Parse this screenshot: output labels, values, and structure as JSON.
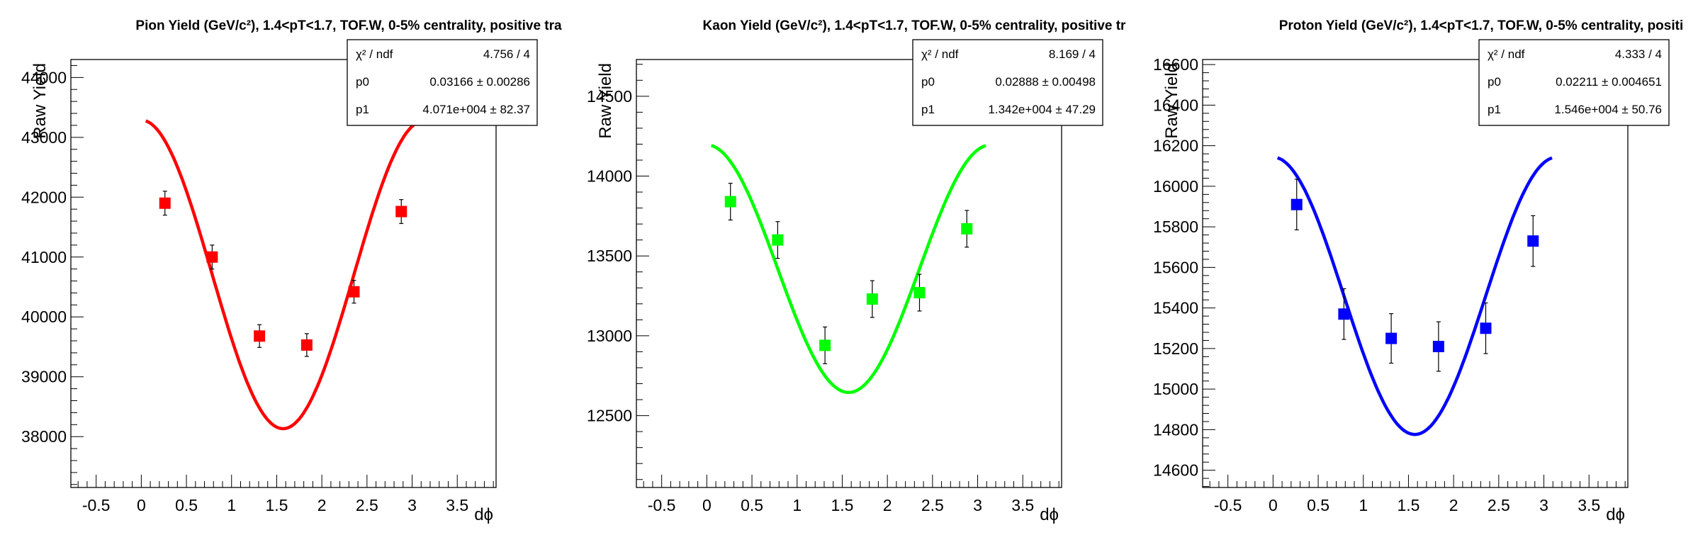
{
  "chart_data": [
    {
      "type": "scatter",
      "title": "Pion Yield (GeV/c²), 1.4<pT<1.7, TOF.W, 0-5% centrality, positive tra",
      "xlabel": "dϕ",
      "ylabel": "Raw Yield",
      "xlim": [
        -0.78,
        3.93
      ],
      "ylim": [
        37150,
        44300
      ],
      "xticks": [
        "-0.5",
        "0",
        "0.5",
        "1",
        "1.5",
        "2",
        "2.5",
        "3",
        "3.5"
      ],
      "xtick_values": [
        -0.5,
        0,
        0.5,
        1,
        1.5,
        2,
        2.5,
        3,
        3.5
      ],
      "yticks": [
        "38000",
        "39000",
        "40000",
        "41000",
        "42000",
        "43000",
        "44000"
      ],
      "ytick_values": [
        38000,
        39000,
        40000,
        41000,
        42000,
        43000,
        44000
      ],
      "color": "#ff0000",
      "points": [
        {
          "x": 0.262,
          "y": 41900,
          "err": 200
        },
        {
          "x": 0.785,
          "y": 41000,
          "err": 200
        },
        {
          "x": 1.309,
          "y": 39680,
          "err": 190
        },
        {
          "x": 1.833,
          "y": 39530,
          "err": 190
        },
        {
          "x": 2.356,
          "y": 40420,
          "err": 190
        },
        {
          "x": 2.88,
          "y": 41760,
          "err": 200
        }
      ],
      "fit": {
        "p0": 0.03166,
        "p1": 40710,
        "xmin": 0.05,
        "xmax": 3.09
      },
      "stats": [
        {
          "label": "χ² / ndf",
          "value": "4.756 / 4"
        },
        {
          "label": "p0",
          "value": "0.03166 ± 0.00286"
        },
        {
          "label": "p1",
          "value": "4.071e+004 ± 82.37"
        }
      ]
    },
    {
      "type": "scatter",
      "title": "Kaon Yield (GeV/c²), 1.4<pT<1.7, TOF.W, 0-5% centrality, positive tr",
      "xlabel": "dϕ",
      "ylabel": "Raw Yield",
      "xlim": [
        -0.78,
        3.93
      ],
      "ylim": [
        12050,
        14730
      ],
      "xticks": [
        "-0.5",
        "0",
        "0.5",
        "1",
        "1.5",
        "2",
        "2.5",
        "3",
        "3.5"
      ],
      "xtick_values": [
        -0.5,
        0,
        0.5,
        1,
        1.5,
        2,
        2.5,
        3,
        3.5
      ],
      "yticks": [
        "12500",
        "13000",
        "13500",
        "14000",
        "14500"
      ],
      "ytick_values": [
        12500,
        13000,
        13500,
        14000,
        14500
      ],
      "color": "#00ff00",
      "points": [
        {
          "x": 0.262,
          "y": 13840,
          "err": 115
        },
        {
          "x": 0.785,
          "y": 13600,
          "err": 115
        },
        {
          "x": 1.309,
          "y": 12940,
          "err": 115
        },
        {
          "x": 1.833,
          "y": 13230,
          "err": 115
        },
        {
          "x": 2.356,
          "y": 13270,
          "err": 115
        },
        {
          "x": 2.88,
          "y": 13670,
          "err": 115
        }
      ],
      "fit": {
        "p0": 0.02888,
        "p1": 13420,
        "xmin": 0.05,
        "xmax": 3.09
      },
      "stats": [
        {
          "label": "χ² / ndf",
          "value": "8.169 / 4"
        },
        {
          "label": "p0",
          "value": "0.02888 ± 0.00498"
        },
        {
          "label": "p1",
          "value": "1.342e+004 ± 47.29"
        }
      ]
    },
    {
      "type": "scatter",
      "title": "Proton Yield (GeV/c²), 1.4<pT<1.7, TOF.W, 0-5% centrality, positi",
      "xlabel": "dϕ",
      "ylabel": "Raw Yield",
      "xlim": [
        -0.78,
        3.93
      ],
      "ylim": [
        14515,
        16625
      ],
      "xticks": [
        "-0.5",
        "0",
        "0.5",
        "1",
        "1.5",
        "2",
        "2.5",
        "3",
        "3.5"
      ],
      "xtick_values": [
        -0.5,
        0,
        0.5,
        1,
        1.5,
        2,
        2.5,
        3,
        3.5
      ],
      "yticks": [
        "14600",
        "14800",
        "15000",
        "15200",
        "15400",
        "15600",
        "15800",
        "16000",
        "16200",
        "16400",
        "16600"
      ],
      "ytick_values": [
        14600,
        14800,
        15000,
        15200,
        15400,
        15600,
        15800,
        16000,
        16200,
        16400,
        16600
      ],
      "color": "#0000ff",
      "points": [
        {
          "x": 0.262,
          "y": 15910,
          "err": 125
        },
        {
          "x": 0.785,
          "y": 15370,
          "err": 125
        },
        {
          "x": 1.309,
          "y": 15250,
          "err": 122
        },
        {
          "x": 1.833,
          "y": 15210,
          "err": 122
        },
        {
          "x": 2.356,
          "y": 15300,
          "err": 125
        },
        {
          "x": 2.88,
          "y": 15730,
          "err": 125
        }
      ],
      "fit": {
        "p0": 0.02211,
        "p1": 15460,
        "xmin": 0.05,
        "xmax": 3.09
      },
      "stats": [
        {
          "label": "χ² / ndf",
          "value": "4.333 / 4"
        },
        {
          "label": "p0",
          "value": "0.02211 ± 0.004651"
        },
        {
          "label": "p1",
          "value": "1.546e+004 ± 50.76"
        }
      ]
    }
  ]
}
